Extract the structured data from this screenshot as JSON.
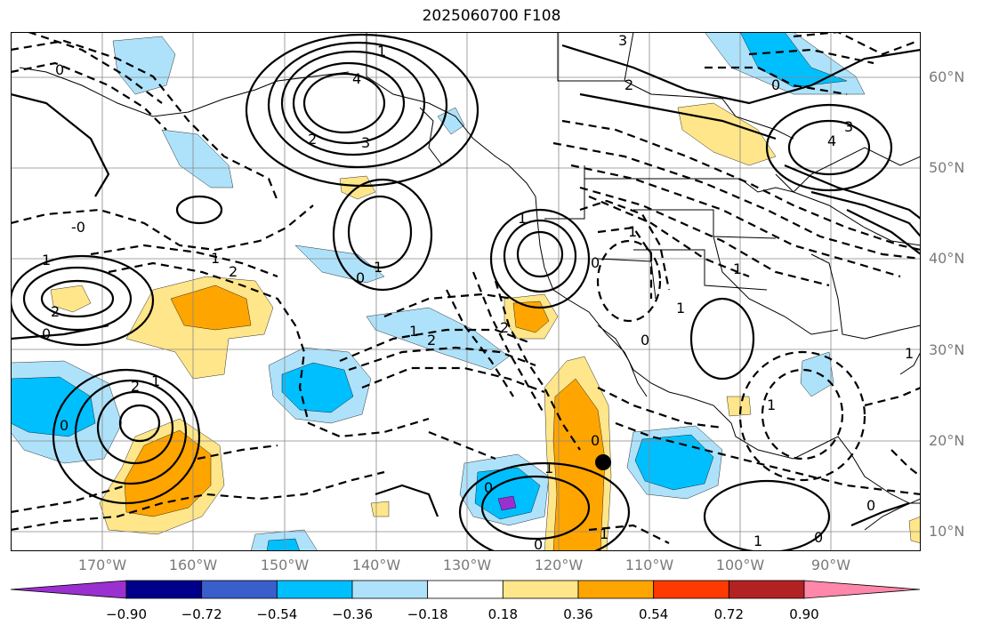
{
  "title": "2025060700 F108",
  "lat_labels": [
    "60°N",
    "50°N",
    "40°N",
    "30°N",
    "20°N",
    "10°N"
  ],
  "lon_labels": [
    "170°W",
    "160°W",
    "150°W",
    "140°W",
    "130°W",
    "120°W",
    "110°W",
    "100°W",
    "90°W"
  ],
  "colorbar": {
    "ticks": [
      "−0.90",
      "−0.72",
      "−0.54",
      "−0.36",
      "−0.18",
      "0.18",
      "0.36",
      "0.54",
      "0.72",
      "0.90"
    ],
    "colors": [
      "#9b30d0",
      "#00008b",
      "#3a5fcd",
      "#00bfff",
      "#aee2fa",
      "#ffffff",
      "#ffe68a",
      "#ffa500",
      "#ff3a00",
      "#b22222",
      "#ff88aa"
    ]
  },
  "contour_labels": [
    "1",
    "4",
    "3",
    "2",
    "0",
    "-0",
    "1",
    "2",
    "3",
    "4",
    "2",
    "3",
    "2",
    "1",
    "0",
    "1",
    "1",
    "2",
    "1",
    "2",
    "0",
    "1",
    "0",
    "1",
    "0",
    "1",
    "2",
    "1",
    "0",
    "0",
    "1",
    "0",
    "1",
    "0",
    "0",
    "1",
    "0",
    "1",
    "0",
    "1"
  ],
  "marker": {
    "name": "black-dot"
  }
}
